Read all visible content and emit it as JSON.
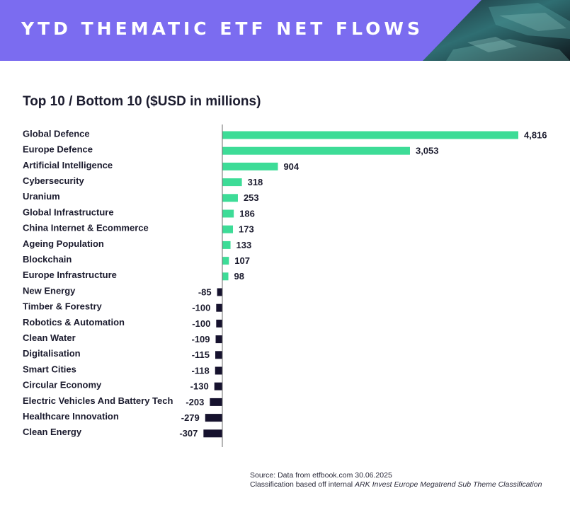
{
  "header": {
    "title": "YTD THEMATIC ETF NET FLOWS",
    "accent_color": "#7b6cf0"
  },
  "subtitle": "Top 10 / Bottom 10 ($USD in millions)",
  "chart_data": {
    "type": "bar",
    "orientation": "horizontal",
    "title": "Top 10 / Bottom 10 ($USD in millions)",
    "xlabel": "",
    "ylabel": "",
    "grid": false,
    "positive_color": "#3ddc97",
    "negative_color": "#16122e",
    "categories": [
      "Global Defence",
      "Europe Defence",
      "Artificial Intelligence",
      "Cybersecurity",
      "Uranium",
      "Global Infrastructure",
      "China Internet & Ecommerce",
      "Ageing Population",
      "Blockchain",
      "Europe Infrastructure",
      "New Energy",
      "Timber & Forestry",
      "Robotics & Automation",
      "Clean Water",
      "Digitalisation",
      "Smart Cities",
      "Circular Economy",
      "Electric Vehicles And Battery Tech",
      "Healthcare Innovation",
      "Clean Energy"
    ],
    "values": [
      4816,
      3053,
      904,
      318,
      253,
      186,
      173,
      133,
      107,
      98,
      -85,
      -100,
      -100,
      -109,
      -115,
      -118,
      -130,
      -203,
      -279,
      -307
    ],
    "value_labels": [
      "4,816",
      "3,053",
      "904",
      "318",
      "253",
      "186",
      "173",
      "133",
      "107",
      "98",
      "-85",
      "-100",
      "-100",
      "-109",
      "-115",
      "-118",
      "-130",
      "-203",
      "-279",
      "-307"
    ]
  },
  "source": {
    "line1": "Source: Data from etfbook.com 30.06.2025",
    "line2_prefix": "Classification based off internal ",
    "line2_italic": "ARK Invest Europe Megatrend Sub Theme Classification"
  }
}
